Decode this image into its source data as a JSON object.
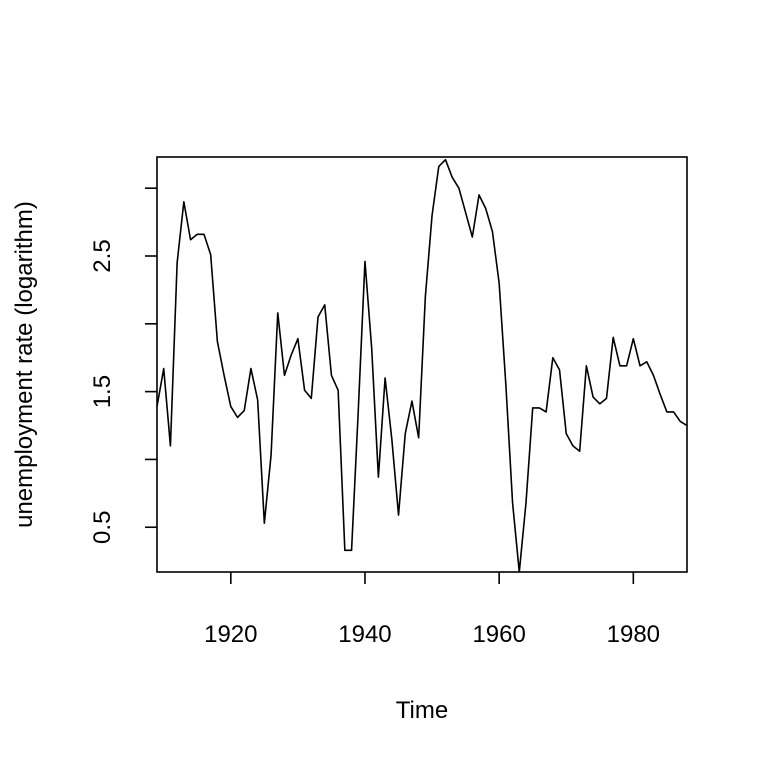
{
  "chart_data": {
    "type": "line",
    "title": "",
    "xlabel": "Time",
    "ylabel": "unemployment rate (logarithm)",
    "xlim": [
      1909,
      1988
    ],
    "ylim": [
      0.17,
      3.23
    ],
    "x_ticks": [
      1920,
      1940,
      1960,
      1980
    ],
    "y_ticks": [
      0.5,
      1.0,
      1.5,
      2.0,
      2.5,
      3.0
    ],
    "y_tick_labels": [
      "0.5",
      "",
      "1.5",
      "",
      "2.5",
      ""
    ],
    "grid": false,
    "legend": "none",
    "line_color": "#000000",
    "series": [
      {
        "x": [
          1909,
          1910,
          1911,
          1912,
          1913,
          1914,
          1915,
          1916,
          1917,
          1918,
          1919,
          1920,
          1921,
          1922,
          1923,
          1924,
          1925,
          1926,
          1927,
          1928,
          1929,
          1930,
          1931,
          1932,
          1933,
          1934,
          1935,
          1936,
          1937,
          1938,
          1939,
          1940,
          1941,
          1942,
          1943,
          1944,
          1945,
          1946,
          1947,
          1948,
          1949,
          1950,
          1951,
          1952,
          1953,
          1954,
          1955,
          1956,
          1957,
          1958,
          1959,
          1960,
          1961,
          1962,
          1963,
          1964,
          1965,
          1966,
          1967,
          1968,
          1969,
          1970,
          1971,
          1972,
          1973,
          1974,
          1975,
          1976,
          1977,
          1978,
          1979,
          1980,
          1981,
          1982,
          1983,
          1984,
          1985,
          1986,
          1987,
          1988
        ],
        "values": [
          1.39,
          1.67,
          1.1,
          2.45,
          2.9,
          2.62,
          2.66,
          2.66,
          2.51,
          1.87,
          1.62,
          1.39,
          1.31,
          1.36,
          1.67,
          1.44,
          0.53,
          1.03,
          2.08,
          1.62,
          1.77,
          1.89,
          1.51,
          1.45,
          2.05,
          2.14,
          1.62,
          1.51,
          0.33,
          0.33,
          1.36,
          2.46,
          1.82,
          0.87,
          1.6,
          1.15,
          0.59,
          1.19,
          1.43,
          1.16,
          2.2,
          2.8,
          3.16,
          3.21,
          3.08,
          3.0,
          2.82,
          2.64,
          2.95,
          2.85,
          2.68,
          2.3,
          1.55,
          0.68,
          0.17,
          0.68,
          1.38,
          1.38,
          1.35,
          1.75,
          1.66,
          1.19,
          1.1,
          1.06,
          1.69,
          1.46,
          1.41,
          1.45,
          1.9,
          1.69,
          1.69,
          1.89,
          1.69,
          1.72,
          1.62,
          1.48,
          1.35,
          1.35,
          1.28,
          1.25
        ]
      }
    ]
  }
}
